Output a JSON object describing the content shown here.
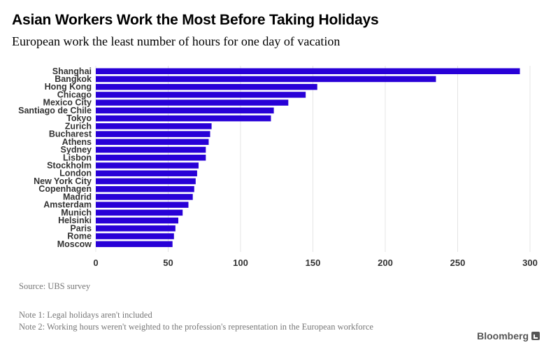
{
  "header": {
    "title": "Asian Workers Work the Most Before Taking Holidays",
    "subtitle": "European work the least number of hours for one day of vacation"
  },
  "footer": {
    "source": "Source: UBS survey",
    "note1": "Note 1: Legal holidays aren't included",
    "note2": "Note 2: Working hours weren't weighted to the profession's representation in the European workforce",
    "brand": "Bloomberg"
  },
  "colors": {
    "bar": "#2800d7",
    "grid": "#e4e4e4"
  },
  "chart_data": {
    "type": "bar",
    "orientation": "horizontal",
    "title": "Asian Workers Work the Most Before Taking Holidays",
    "subtitle": "European work the least number of hours for one day of vacation",
    "categories": [
      "Shanghai",
      "Bangkok",
      "Hong Kong",
      "Chicago",
      "Mexico City",
      "Santiago de Chile",
      "Tokyo",
      "Zurich",
      "Bucharest",
      "Athens",
      "Sydney",
      "Lisbon",
      "Stockholm",
      "London",
      "New York City",
      "Copenhagen",
      "Madrid",
      "Amsterdam",
      "Munich",
      "Helsinki",
      "Paris",
      "Rome",
      "Moscow"
    ],
    "values": [
      293,
      235,
      153,
      145,
      133,
      123,
      121,
      80,
      79,
      78,
      76,
      76,
      71,
      70,
      69,
      68,
      67,
      64,
      60,
      57,
      55,
      54,
      53
    ],
    "xticks": [
      0,
      50,
      100,
      150,
      200,
      250,
      300
    ],
    "xlim": [
      0,
      300
    ],
    "xlabel": "",
    "ylabel": "",
    "grid": true
  }
}
